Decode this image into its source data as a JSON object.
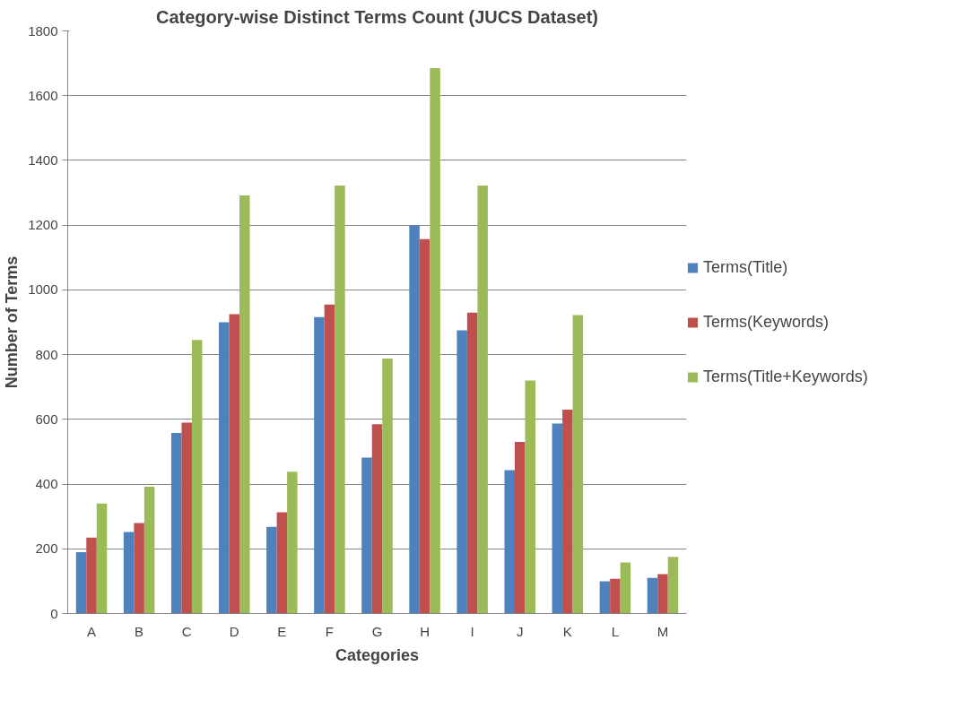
{
  "chart_data": {
    "type": "bar",
    "title": "Category-wise Distinct Terms Count (JUCS Dataset)",
    "xlabel": "Categories",
    "ylabel": "Number of Terms",
    "categories": [
      "A",
      "B",
      "C",
      "D",
      "E",
      "F",
      "G",
      "H",
      "I",
      "J",
      "K",
      "L",
      "M"
    ],
    "series": [
      {
        "name": "Terms(Title)",
        "color": "#4f81bd",
        "values": [
          190,
          252,
          558,
          900,
          268,
          916,
          482,
          1200,
          875,
          443,
          587,
          100,
          110
        ]
      },
      {
        "name": "Terms(Keywords)",
        "color": "#c0504d",
        "values": [
          235,
          280,
          590,
          925,
          313,
          955,
          585,
          1157,
          930,
          530,
          630,
          107,
          122
        ]
      },
      {
        "name": "Terms(Title+Keywords)",
        "color": "#9bbb59",
        "values": [
          340,
          392,
          845,
          1292,
          438,
          1322,
          788,
          1685,
          1322,
          720,
          922,
          158,
          175
        ]
      }
    ],
    "ylim": [
      0,
      1800
    ],
    "yticks": [
      0,
      200,
      400,
      600,
      800,
      1000,
      1200,
      1400,
      1600,
      1800
    ],
    "grid": "y",
    "legend": "right"
  }
}
